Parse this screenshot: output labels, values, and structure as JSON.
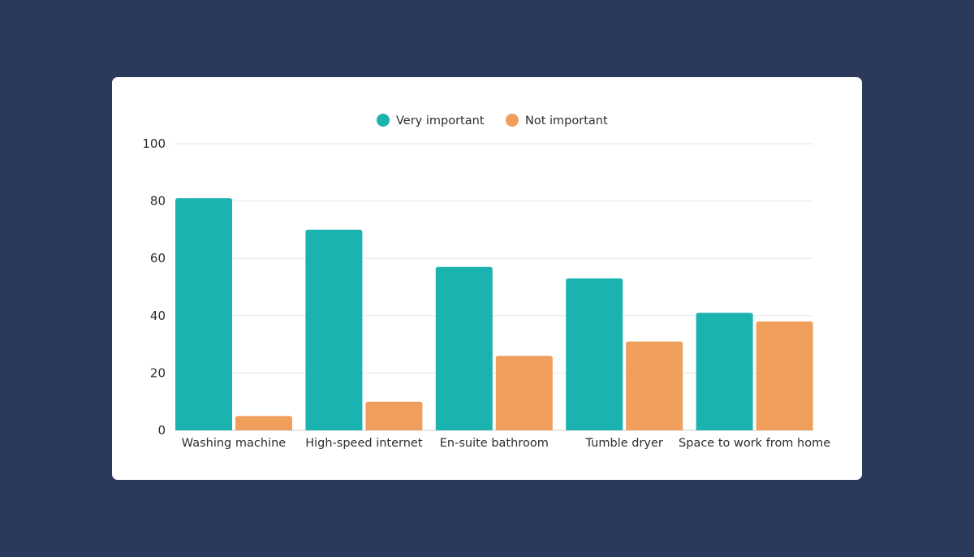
{
  "chart_data": {
    "type": "bar",
    "categories": [
      "Washing machine",
      "High-speed internet",
      "En-suite bathroom",
      "Tumble dryer",
      "Space to work from home"
    ],
    "series": [
      {
        "name": "Very important",
        "color": "#1bb3b0",
        "values": [
          81,
          70,
          57,
          53,
          41
        ]
      },
      {
        "name": "Not important",
        "color": "#f09e5c",
        "values": [
          5,
          10,
          26,
          31,
          38
        ]
      }
    ],
    "yticks": [
      0,
      20,
      40,
      60,
      80,
      100
    ],
    "ylim": [
      0,
      100
    ],
    "grid": true,
    "legend_position": "top-center",
    "title": "",
    "xlabel": "",
    "ylabel": ""
  },
  "colors": {
    "background": "#2b395b",
    "card": "#ffffff",
    "grid": "#e6e6e6"
  }
}
